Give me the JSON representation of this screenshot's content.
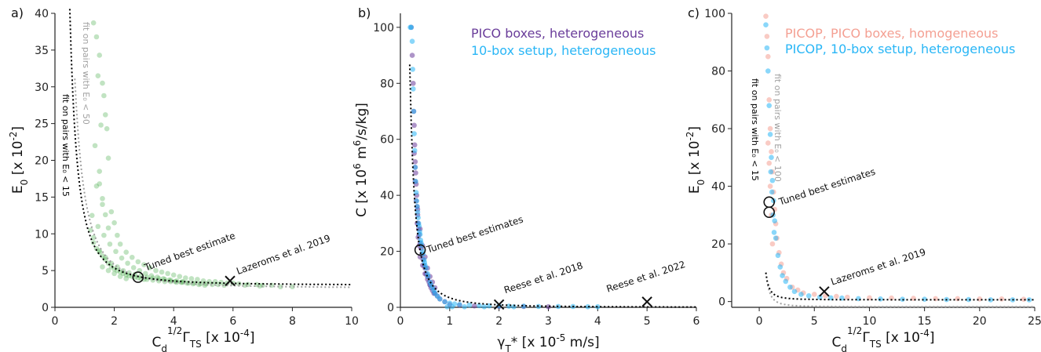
{
  "chart_data": [
    {
      "panel": "a)",
      "type": "scatter",
      "xlabel": "C₀¹ᐟ²Γₜₛ [x 10⁻⁴]",
      "xlabel_main": "C",
      "xlabel_sub": "d",
      "xlabel_sup": "1/2",
      "xlabel_greek": "Γ",
      "xlabel_sub2": "TS",
      "xlabel_unit": " [x 10",
      "xlabel_exp": "-4",
      "xlabel_close": "]",
      "ylabel_main": "E",
      "ylabel_sub": "0",
      "ylabel_unit": " [x 10",
      "ylabel_exp": "-2",
      "ylabel_close": "]",
      "xlim": [
        0,
        10
      ],
      "ylim": [
        0,
        40
      ],
      "xticks": [
        0,
        2,
        4,
        6,
        8,
        10
      ],
      "yticks": [
        0,
        5,
        10,
        15,
        20,
        25,
        30,
        35,
        40
      ],
      "series": [
        {
          "color": "#4caf50",
          "x": [
            1.3,
            1.4,
            1.5,
            1.45,
            1.6,
            1.65,
            1.7,
            1.55,
            1.35,
            1.75,
            1.8,
            1.5,
            1.4,
            1.6,
            1.9,
            2.0,
            2.1,
            1.7,
            1.5,
            1.6,
            1.8,
            2.2,
            2.4,
            2.6,
            2.8,
            3.0,
            3.2,
            3.4,
            3.6,
            3.8,
            4.0,
            4.2,
            4.4,
            4.6,
            4.8,
            5.0,
            5.2,
            5.4,
            5.6,
            5.8,
            6.0,
            6.2,
            6.5,
            6.8,
            7.0,
            7.3,
            1.2,
            1.3,
            1.4,
            1.5,
            1.6,
            1.7,
            1.8,
            1.9,
            2.0,
            2.1,
            2.2,
            2.3,
            2.4,
            2.5,
            2.6,
            2.7,
            2.8,
            2.9,
            3.0,
            3.1,
            3.3,
            3.5,
            3.7,
            3.9,
            4.1,
            4.3,
            4.5,
            4.7,
            4.9,
            5.1,
            5.3,
            5.5,
            5.7,
            1.3,
            1.5,
            1.7,
            1.9,
            2.1,
            2.3,
            2.5,
            2.7,
            2.9,
            3.1,
            3.3,
            3.5,
            3.7,
            3.9,
            4.1,
            4.3,
            1.6,
            1.8,
            2.0,
            2.2,
            2.4,
            1.25,
            1.45,
            1.65,
            1.85,
            2.05,
            2.25,
            2.45,
            2.65,
            2.85,
            3.05,
            3.25,
            3.45,
            3.65,
            3.85,
            4.05,
            4.25,
            4.45,
            4.65,
            4.85,
            5.05,
            6.4,
            6.9,
            7.6,
            8.0
          ],
          "y": [
            38.7,
            36.8,
            34.3,
            31.5,
            30.5,
            28.8,
            26.2,
            24.8,
            22.0,
            24.3,
            20.3,
            18.5,
            16.5,
            14.8,
            13.0,
            11.5,
            9.8,
            12.6,
            16.8,
            14.0,
            10.8,
            8.6,
            7.5,
            6.8,
            6.2,
            5.8,
            5.4,
            5.0,
            4.8,
            4.6,
            4.4,
            4.2,
            4.0,
            3.9,
            3.8,
            3.6,
            3.5,
            3.5,
            3.4,
            3.3,
            3.3,
            3.2,
            3.1,
            3.1,
            3.0,
            3.0,
            10.5,
            9.5,
            8.0,
            7.5,
            7.0,
            6.5,
            6.0,
            5.5,
            5.2,
            5.0,
            4.8,
            4.6,
            4.4,
            4.3,
            4.2,
            4.1,
            4.0,
            3.9,
            3.8,
            3.8,
            3.7,
            3.6,
            3.5,
            3.5,
            3.4,
            3.4,
            3.3,
            3.3,
            3.2,
            3.2,
            3.1,
            3.1,
            3.0,
            8.8,
            7.7,
            6.8,
            6.0,
            5.5,
            5.0,
            4.7,
            4.5,
            4.3,
            4.1,
            4.0,
            3.9,
            3.8,
            3.7,
            3.6,
            3.5,
            5.5,
            5.0,
            4.6,
            4.2,
            3.9,
            12.5,
            11.0,
            9.8,
            8.6,
            7.6,
            6.7,
            6.0,
            5.4,
            5.0,
            4.6,
            4.3,
            4.1,
            3.9,
            3.7,
            3.5,
            3.4,
            3.3,
            3.2,
            3.1,
            3.0,
            3.0,
            2.9,
            2.8,
            2.8
          ]
        }
      ],
      "fits": [
        {
          "label": "fit on pairs with E₀ < 15",
          "color": "#000000"
        },
        {
          "label": "fit on pairs with E₀ < 50",
          "color": "#a0a0a0"
        }
      ],
      "markers": [
        {
          "label": "Tuned best estimate",
          "x": 2.8,
          "y": 4.1,
          "marker": "circle"
        },
        {
          "label": "Lazeroms et al. 2019",
          "x": 5.9,
          "y": 3.6,
          "marker": "cross"
        }
      ]
    },
    {
      "panel": "b)",
      "type": "scatter",
      "xlabel_main": "γ",
      "xlabel_sub": "T",
      "xlabel_star": "*",
      "xlabel_unit": " [x 10",
      "xlabel_exp": "-5",
      "xlabel_close": " m/s]",
      "ylabel_main": "C  [x 10",
      "ylabel_exp": "6",
      "ylabel_mid": " m",
      "ylabel_exp2": "6",
      "ylabel_close": "/s/kg]",
      "xlim": [
        0,
        6
      ],
      "ylim": [
        0,
        105
      ],
      "xticks": [
        0,
        1,
        2,
        3,
        4,
        5,
        6
      ],
      "yticks": [
        0,
        20,
        40,
        60,
        80,
        100
      ],
      "series": [
        {
          "name": "PICO boxes, heterogeneous",
          "color": "#6a3d9a",
          "x": [
            0.22,
            0.24,
            0.26,
            0.27,
            0.28,
            0.29,
            0.3,
            0.31,
            0.32,
            0.33,
            0.34,
            0.35,
            0.36,
            0.37,
            0.38,
            0.4,
            0.42,
            0.44,
            0.46,
            0.48,
            0.5,
            0.52,
            0.55,
            0.58,
            0.6,
            0.62,
            0.65,
            0.68,
            0.7,
            0.75,
            0.8,
            0.9,
            1.0,
            1.2,
            1.5,
            2.0,
            2.5,
            3.0,
            0.3,
            0.32,
            0.34,
            0.36,
            0.38,
            0.4,
            0.45,
            0.5,
            0.55,
            0.6,
            0.28,
            0.3,
            0.35,
            0.4,
            0.45,
            0.5,
            0.55,
            0.6,
            0.65,
            0.7
          ],
          "y": [
            100,
            90,
            80,
            70,
            65,
            58,
            52,
            48,
            44,
            40,
            36,
            33,
            30,
            28,
            26,
            23,
            21,
            19,
            17,
            15,
            14,
            12,
            11,
            9,
            8,
            7,
            6,
            5,
            5,
            4,
            3,
            2,
            1,
            0.8,
            0.5,
            0.3,
            0.3,
            0.2,
            45,
            38,
            30,
            25,
            22,
            18,
            15,
            12,
            10,
            8,
            55,
            50,
            35,
            28,
            22,
            18,
            14,
            11,
            9,
            7
          ]
        },
        {
          "name": "10-box setup, heterogeneous",
          "color": "#29b6f6",
          "x": [
            0.2,
            0.22,
            0.24,
            0.25,
            0.26,
            0.27,
            0.28,
            0.29,
            0.3,
            0.31,
            0.32,
            0.34,
            0.36,
            0.38,
            0.4,
            0.42,
            0.45,
            0.48,
            0.5,
            0.55,
            0.6,
            0.65,
            0.7,
            0.75,
            0.8,
            0.9,
            1.0,
            1.1,
            1.2,
            1.4,
            1.6,
            1.8,
            2.0,
            2.2,
            2.5,
            2.8,
            3.2,
            3.5,
            3.8,
            4.0,
            0.95,
            1.05,
            1.3,
            1.7,
            2.3,
            0.33,
            0.35,
            0.37,
            0.39,
            0.41,
            0.43,
            0.46,
            0.49,
            0.52,
            0.56,
            0.62,
            0.68
          ],
          "y": [
            100,
            100,
            95,
            85,
            78,
            70,
            62,
            56,
            50,
            45,
            41,
            36,
            32,
            29,
            26,
            23,
            20,
            17,
            15,
            12,
            9,
            7,
            5,
            4,
            3,
            2,
            1.5,
            1.2,
            1,
            0.8,
            0.6,
            0.5,
            0.5,
            0.4,
            0.4,
            0.3,
            0.3,
            0.3,
            0.2,
            0.2,
            0.2,
            0.2,
            0.2,
            0.2,
            0.2,
            38,
            34,
            30,
            27,
            24,
            22,
            19,
            16,
            14,
            11,
            8,
            6
          ]
        }
      ],
      "markers": [
        {
          "label": "Tuned best estimates",
          "x": 0.4,
          "y": 20.5,
          "marker": "circle"
        },
        {
          "label": "Reese et al. 2018",
          "x": 2.0,
          "y": 1.0,
          "marker": "cross"
        },
        {
          "label": "Reese et al. 2022",
          "x": 5.0,
          "y": 2.0,
          "marker": "cross"
        }
      ]
    },
    {
      "panel": "c)",
      "type": "scatter",
      "xlabel_main": "C",
      "xlabel_sub": "d",
      "xlabel_sup": "1/2",
      "xlabel_greek": "Γ",
      "xlabel_sub2": "TS",
      "xlabel_unit": " [x 10",
      "xlabel_exp": "-4",
      "xlabel_close": "]",
      "ylabel_main": "E",
      "ylabel_sub": "0",
      "ylabel_unit": " [x 10",
      "ylabel_exp": "-2",
      "ylabel_close": "]",
      "xlim": [
        -2.5,
        25
      ],
      "ylim": [
        -2,
        100
      ],
      "xticks": [
        0,
        5,
        10,
        15,
        20,
        25
      ],
      "yticks": [
        0,
        20,
        40,
        60,
        80,
        100
      ],
      "series": [
        {
          "name": "PICOP, PICO boxes, homogeneous",
          "color": "#f4a093",
          "x": [
            0.6,
            0.7,
            0.8,
            0.9,
            1.0,
            1.1,
            1.2,
            1.3,
            1.4,
            1.5,
            1.6,
            1.8,
            2.0,
            2.2,
            2.5,
            3.0,
            3.5,
            4.0,
            5.0,
            6.0,
            7.0,
            8.0,
            10,
            12,
            14,
            16,
            18,
            20,
            22,
            24,
            0.8,
            0.9,
            1.0,
            1.1,
            1.2
          ],
          "y": [
            99,
            92,
            85,
            70,
            60,
            52,
            45,
            38,
            32,
            27,
            22,
            17,
            13,
            10,
            8,
            5,
            4,
            3,
            2.5,
            2,
            1.8,
            1.5,
            1.3,
            1.2,
            1.1,
            1.0,
            1.0,
            0.9,
            0.9,
            0.8,
            55,
            48,
            40,
            30,
            20
          ]
        },
        {
          "name": "PICOP, 10-box setup, heterogeneous",
          "color": "#29b6f6",
          "x": [
            0.6,
            0.7,
            0.8,
            0.9,
            1.0,
            1.1,
            1.2,
            1.3,
            1.4,
            1.5,
            1.7,
            1.9,
            2.1,
            2.4,
            2.8,
            3.2,
            3.8,
            4.5,
            5.5,
            6.5,
            7.5,
            9,
            11,
            13,
            15,
            17,
            19,
            21,
            23,
            24.5,
            1.05,
            1.15,
            1.25,
            1.35
          ],
          "y": [
            96,
            88,
            80,
            68,
            58,
            50,
            42,
            35,
            28,
            22,
            16,
            12,
            9,
            7,
            5,
            3.5,
            2.5,
            2,
            1.5,
            1.3,
            1.2,
            1.0,
            0.9,
            0.8,
            0.8,
            0.7,
            0.7,
            0.6,
            0.6,
            0.6,
            45,
            38,
            30,
            24
          ]
        }
      ],
      "fits": [
        {
          "label": "fit on pairs with E₀ < 15",
          "color": "#000000"
        },
        {
          "label": "fit on pairs with E₀ < 100",
          "color": "#a0a0a0"
        }
      ],
      "markers": [
        {
          "label": "Tuned best estimates",
          "x": 0.9,
          "y": 34.5,
          "marker": "circle"
        },
        {
          "label": "",
          "x": 0.9,
          "y": 31,
          "marker": "circle"
        },
        {
          "label": "Lazeroms et al. 2019",
          "x": 5.9,
          "y": 3.5,
          "marker": "cross"
        }
      ]
    }
  ]
}
